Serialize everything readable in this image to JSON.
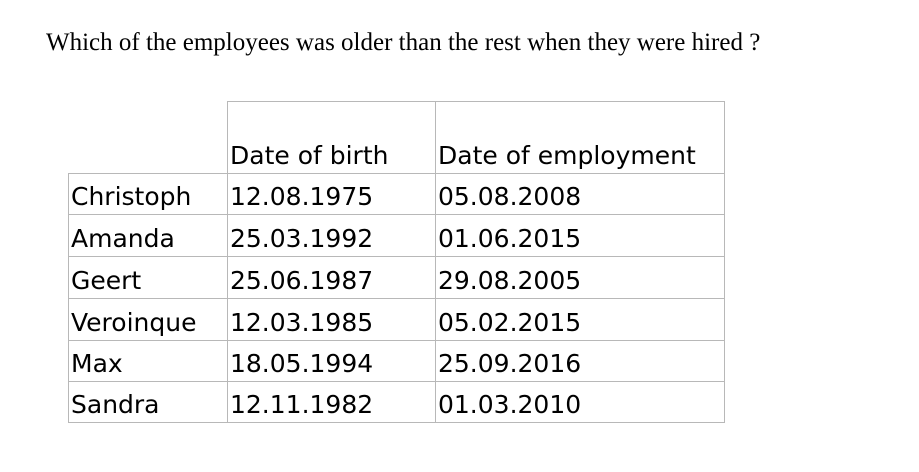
{
  "question": "Which of the employees was older than the rest when they were hired ?",
  "table": {
    "headers": [
      "",
      "Date of birth",
      "Date of employment"
    ],
    "rows": [
      {
        "name": "Christoph",
        "birth": "12.08.1975",
        "employment": "05.08.2008"
      },
      {
        "name": "Amanda",
        "birth": "25.03.1992",
        "employment": "01.06.2015"
      },
      {
        "name": "Geert",
        "birth": "25.06.1987",
        "employment": "29.08.2005"
      },
      {
        "name": "Veroinque",
        "birth": "12.03.1985",
        "employment": "05.02.2015"
      },
      {
        "name": "Max",
        "birth": "18.05.1994",
        "employment": "25.09.2016"
      },
      {
        "name": "Sandra",
        "birth": "12.11.1982",
        "employment": "01.03.2010"
      }
    ]
  },
  "colors": {
    "text": "#000000",
    "grid": "#b8b8b8",
    "background": "#ffffff"
  }
}
